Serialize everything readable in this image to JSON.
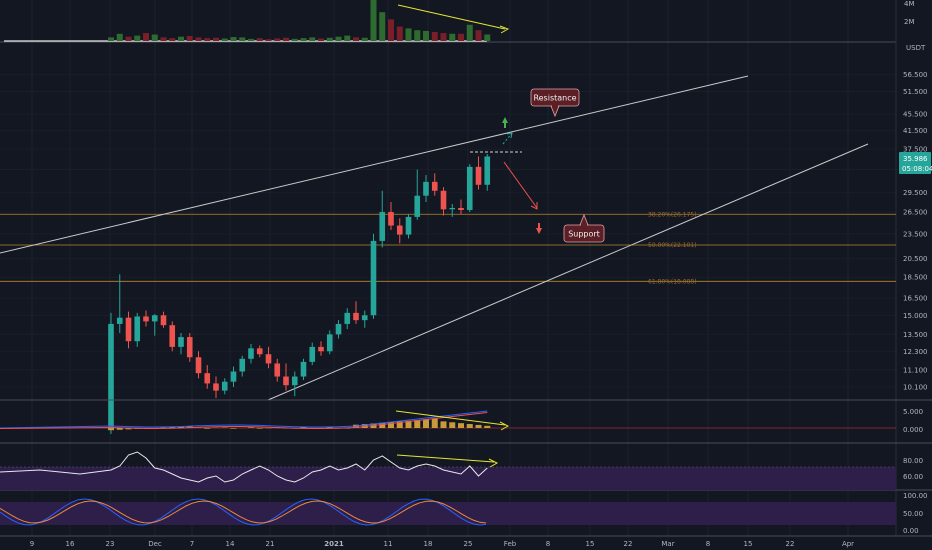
{
  "chart_data": {
    "type": "candlestick",
    "pair_label": "USDT",
    "colors": {
      "background": "#131722",
      "up": "#26a69a",
      "down": "#ef5350",
      "fib": "#b8862b",
      "trendline": "#c9c9c9",
      "annotation_yellow": "#e6e62e",
      "callout_bg": "#5b1f26",
      "rsi_band": "#3b1f5c",
      "macd_hist": "#c89a3a",
      "price_tag": "#26a69a"
    },
    "price_axis": {
      "scale": "log",
      "ticks": [
        "56.500",
        "51.500",
        "45.500",
        "41.500",
        "37.500",
        "33.500",
        "29.500",
        "26.500",
        "23.500",
        "20.500",
        "18.500",
        "16.500",
        "15.000",
        "13.500",
        "12.300",
        "11.100",
        "10.100"
      ]
    },
    "current_price": "35.986",
    "countdown": "05:08:04",
    "volume_axis": {
      "ticks": [
        "4M",
        "2M"
      ]
    },
    "x_axis": {
      "ticks": [
        "9",
        "16",
        "23",
        "Dec",
        "7",
        "14",
        "21",
        "2021",
        "11",
        "18",
        "25",
        "Feb",
        "8",
        "15",
        "22",
        "Mar",
        "8",
        "15",
        "22",
        "Apr"
      ]
    },
    "fib_levels": [
      {
        "label": "38.20%(26.175)",
        "price": 26.175
      },
      {
        "label": "50.00%(22.101)",
        "price": 22.101
      },
      {
        "label": "61.80%(18.088)",
        "price": 18.088
      }
    ],
    "annotations": {
      "resistance": "Resistance",
      "support": "Support"
    },
    "candles": [
      {
        "o": 8.0,
        "h": 15.2,
        "l": 7.8,
        "c": 14.3
      },
      {
        "o": 14.3,
        "h": 18.8,
        "l": 13.6,
        "c": 14.8
      },
      {
        "o": 14.8,
        "h": 15.3,
        "l": 12.5,
        "c": 13.0
      },
      {
        "o": 13.0,
        "h": 15.2,
        "l": 12.6,
        "c": 14.9
      },
      {
        "o": 14.9,
        "h": 15.4,
        "l": 14.1,
        "c": 14.5
      },
      {
        "o": 14.5,
        "h": 15.1,
        "l": 13.4,
        "c": 15.0
      },
      {
        "o": 15.0,
        "h": 15.3,
        "l": 14.0,
        "c": 14.2
      },
      {
        "o": 14.2,
        "h": 14.5,
        "l": 12.3,
        "c": 12.6
      },
      {
        "o": 12.6,
        "h": 13.6,
        "l": 12.1,
        "c": 13.3
      },
      {
        "o": 13.3,
        "h": 13.6,
        "l": 11.6,
        "c": 11.9
      },
      {
        "o": 11.9,
        "h": 12.3,
        "l": 10.6,
        "c": 10.9
      },
      {
        "o": 10.9,
        "h": 11.4,
        "l": 10.0,
        "c": 10.3
      },
      {
        "o": 10.3,
        "h": 10.7,
        "l": 9.5,
        "c": 9.9
      },
      {
        "o": 9.9,
        "h": 10.6,
        "l": 9.7,
        "c": 10.4
      },
      {
        "o": 10.4,
        "h": 11.3,
        "l": 10.1,
        "c": 11.0
      },
      {
        "o": 11.0,
        "h": 12.0,
        "l": 10.7,
        "c": 11.8
      },
      {
        "o": 11.8,
        "h": 12.8,
        "l": 11.5,
        "c": 12.5
      },
      {
        "o": 12.5,
        "h": 12.7,
        "l": 11.9,
        "c": 12.1
      },
      {
        "o": 12.1,
        "h": 12.6,
        "l": 11.2,
        "c": 11.5
      },
      {
        "o": 11.5,
        "h": 11.8,
        "l": 10.4,
        "c": 10.7
      },
      {
        "o": 10.7,
        "h": 11.5,
        "l": 9.9,
        "c": 10.2
      },
      {
        "o": 10.2,
        "h": 11.0,
        "l": 9.6,
        "c": 10.7
      },
      {
        "o": 10.7,
        "h": 11.8,
        "l": 10.5,
        "c": 11.6
      },
      {
        "o": 11.6,
        "h": 12.9,
        "l": 11.4,
        "c": 12.6
      },
      {
        "o": 12.6,
        "h": 13.0,
        "l": 12.0,
        "c": 12.3
      },
      {
        "o": 12.3,
        "h": 13.8,
        "l": 12.1,
        "c": 13.5
      },
      {
        "o": 13.5,
        "h": 14.6,
        "l": 13.2,
        "c": 14.3
      },
      {
        "o": 14.3,
        "h": 15.6,
        "l": 13.9,
        "c": 15.2
      },
      {
        "o": 15.2,
        "h": 16.2,
        "l": 14.3,
        "c": 14.6
      },
      {
        "o": 14.6,
        "h": 15.4,
        "l": 14.0,
        "c": 15.0
      },
      {
        "o": 15.0,
        "h": 23.5,
        "l": 14.7,
        "c": 22.6
      },
      {
        "o": 22.6,
        "h": 29.8,
        "l": 21.8,
        "c": 26.5
      },
      {
        "o": 26.5,
        "h": 28.0,
        "l": 24.0,
        "c": 24.6
      },
      {
        "o": 24.6,
        "h": 25.6,
        "l": 22.3,
        "c": 23.4
      },
      {
        "o": 23.4,
        "h": 26.2,
        "l": 22.9,
        "c": 25.8
      },
      {
        "o": 25.8,
        "h": 33.5,
        "l": 25.4,
        "c": 29.0
      },
      {
        "o": 29.0,
        "h": 32.5,
        "l": 28.0,
        "c": 31.3
      },
      {
        "o": 31.3,
        "h": 32.8,
        "l": 29.0,
        "c": 29.8
      },
      {
        "o": 29.8,
        "h": 30.4,
        "l": 26.0,
        "c": 26.9
      },
      {
        "o": 26.9,
        "h": 27.7,
        "l": 25.8,
        "c": 27.1
      },
      {
        "o": 27.1,
        "h": 28.4,
        "l": 26.2,
        "c": 26.8
      },
      {
        "o": 26.8,
        "h": 34.5,
        "l": 26.5,
        "c": 34.0
      },
      {
        "o": 34.0,
        "h": 36.0,
        "l": 30.0,
        "c": 30.8
      },
      {
        "o": 30.8,
        "h": 36.5,
        "l": 29.8,
        "c": 36.0
      }
    ],
    "volume": [
      0.1,
      0.2,
      0.12,
      0.15,
      0.22,
      0.18,
      0.1,
      0.08,
      0.12,
      0.14,
      0.1,
      0.08,
      0.09,
      0.07,
      0.11,
      0.1,
      0.06,
      0.08,
      0.05,
      0.07,
      0.09,
      0.06,
      0.08,
      0.1,
      0.07,
      0.09,
      0.12,
      0.15,
      0.1,
      0.09,
      1.15,
      0.8,
      0.6,
      0.4,
      0.35,
      0.3,
      0.28,
      0.25,
      0.22,
      0.2,
      0.2,
      0.45,
      0.3,
      0.18
    ],
    "macd_axis": [
      "5.000",
      "0.000"
    ],
    "rsi_axis": [
      "80.00",
      "60.00"
    ],
    "stoch_axis": [
      "100.00",
      "50.00",
      "0.00"
    ]
  }
}
